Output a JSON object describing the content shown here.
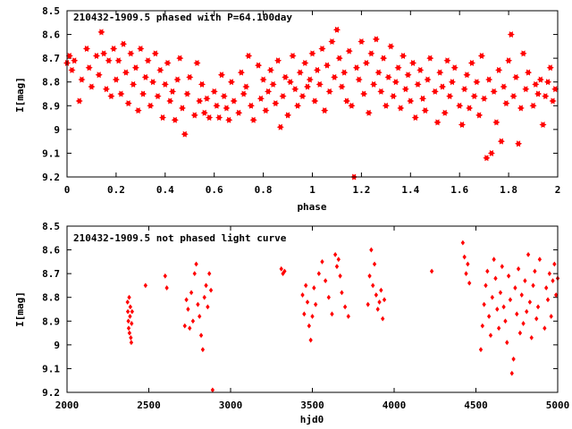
{
  "colors": {
    "points": "#ff0000",
    "axes": "#000000",
    "background": "#ffffff"
  },
  "chart_data": [
    {
      "type": "scatter",
      "title": "210432-1909.5 phased with P=64.100day",
      "xlabel": "phase",
      "ylabel": "I[mag]",
      "xlim": [
        0,
        2
      ],
      "ylim": [
        9.2,
        8.5
      ],
      "y_inverted": true,
      "xticks": [
        "0",
        "0.2",
        "0.4",
        "0.6",
        "0.8",
        "1",
        "1.2",
        "1.4",
        "1.6",
        "1.8",
        "2"
      ],
      "yticks": [
        "8.5",
        "8.6",
        "8.7",
        "8.8",
        "8.9",
        "9",
        "9.1",
        "9.2"
      ],
      "marker": "star",
      "series": [
        {
          "x": [
            0.0,
            0.01,
            0.02,
            0.03,
            0.05,
            0.06,
            0.08,
            0.09,
            0.1,
            0.12,
            0.13,
            0.14,
            0.15,
            0.16,
            0.17,
            0.18,
            0.19,
            0.2,
            0.21,
            0.22,
            0.23,
            0.24,
            0.25,
            0.26,
            0.27,
            0.28,
            0.29,
            0.3,
            0.31,
            0.32,
            0.33,
            0.34,
            0.35,
            0.36,
            0.37,
            0.38,
            0.39,
            0.4,
            0.41,
            0.42,
            0.43,
            0.44,
            0.45,
            0.46,
            0.47,
            0.48,
            0.49,
            0.5,
            0.52,
            0.53,
            0.54,
            0.55,
            0.56,
            0.57,
            0.58,
            0.6,
            0.61,
            0.62,
            0.63,
            0.64,
            0.65,
            0.66,
            0.67,
            0.68,
            0.7,
            0.71,
            0.72,
            0.73,
            0.74,
            0.75,
            0.76,
            0.78,
            0.79,
            0.8,
            0.81,
            0.82,
            0.83,
            0.84,
            0.85,
            0.86,
            0.87,
            0.88,
            0.89,
            0.9,
            0.91,
            0.92,
            0.93,
            0.94,
            0.95,
            0.96,
            0.97,
            0.98,
            0.99,
            1.0,
            1.01,
            1.02,
            1.03,
            1.04,
            1.05,
            1.06,
            1.07,
            1.08,
            1.09,
            1.1,
            1.11,
            1.12,
            1.13,
            1.14,
            1.15,
            1.16,
            1.17,
            1.18,
            1.19,
            1.2,
            1.21,
            1.22,
            1.23,
            1.24,
            1.25,
            1.26,
            1.27,
            1.28,
            1.29,
            1.3,
            1.31,
            1.32,
            1.33,
            1.34,
            1.35,
            1.36,
            1.37,
            1.38,
            1.39,
            1.4,
            1.41,
            1.42,
            1.43,
            1.44,
            1.45,
            1.46,
            1.47,
            1.48,
            1.5,
            1.51,
            1.52,
            1.53,
            1.54,
            1.55,
            1.56,
            1.57,
            1.58,
            1.6,
            1.61,
            1.62,
            1.63,
            1.64,
            1.65,
            1.66,
            1.67,
            1.68,
            1.69,
            1.7,
            1.71,
            1.72,
            1.73,
            1.74,
            1.75,
            1.76,
            1.77,
            1.78,
            1.79,
            1.8,
            1.81,
            1.82,
            1.83,
            1.84,
            1.85,
            1.86,
            1.87,
            1.88,
            1.9,
            1.91,
            1.92,
            1.93,
            1.94,
            1.95,
            1.96,
            1.97,
            1.98,
            1.99
          ],
          "y": [
            8.72,
            8.69,
            8.75,
            8.71,
            8.88,
            8.79,
            8.66,
            8.74,
            8.82,
            8.69,
            8.77,
            8.59,
            8.68,
            8.83,
            8.71,
            8.86,
            8.66,
            8.79,
            8.71,
            8.85,
            8.64,
            8.76,
            8.89,
            8.68,
            8.81,
            8.74,
            8.92,
            8.66,
            8.85,
            8.78,
            8.71,
            8.9,
            8.8,
            8.68,
            8.86,
            8.75,
            8.95,
            8.81,
            8.72,
            8.88,
            8.84,
            8.96,
            8.79,
            8.7,
            8.91,
            9.02,
            8.85,
            8.78,
            8.94,
            8.72,
            8.88,
            8.81,
            8.93,
            8.87,
            8.95,
            8.84,
            8.9,
            8.95,
            8.77,
            8.86,
            8.91,
            8.96,
            8.8,
            8.88,
            8.93,
            8.76,
            8.85,
            8.82,
            8.69,
            8.9,
            8.96,
            8.73,
            8.87,
            8.79,
            8.92,
            8.84,
            8.75,
            8.81,
            8.89,
            8.71,
            8.99,
            8.86,
            8.78,
            8.94,
            8.8,
            8.69,
            8.83,
            8.9,
            8.76,
            8.86,
            8.72,
            8.82,
            8.79,
            8.68,
            8.88,
            8.75,
            8.81,
            8.66,
            8.92,
            8.73,
            8.84,
            8.63,
            8.78,
            8.58,
            8.7,
            8.82,
            8.76,
            8.88,
            8.67,
            8.9,
            9.2,
            8.74,
            8.79,
            8.63,
            8.85,
            8.72,
            8.93,
            8.68,
            8.81,
            8.62,
            8.76,
            8.84,
            8.7,
            8.9,
            8.78,
            8.65,
            8.86,
            8.8,
            8.74,
            8.91,
            8.69,
            8.83,
            8.77,
            8.88,
            8.72,
            8.95,
            8.81,
            8.75,
            8.87,
            8.92,
            8.79,
            8.7,
            8.84,
            8.97,
            8.76,
            8.82,
            8.93,
            8.71,
            8.86,
            8.8,
            8.74,
            8.9,
            8.98,
            8.83,
            8.77,
            8.91,
            8.72,
            8.86,
            8.8,
            8.94,
            8.69,
            8.87,
            9.12,
            8.79,
            9.1,
            8.84,
            8.97,
            8.75,
            9.05,
            8.82,
            8.89,
            8.71,
            8.6,
            8.86,
            8.78,
            9.06,
            8.91,
            8.68,
            8.83,
            8.76,
            8.9,
            8.81,
            8.85,
            8.79,
            8.98,
            8.86,
            8.8,
            8.74,
            8.88,
            8.83
          ]
        }
      ]
    },
    {
      "type": "scatter",
      "title": "210432-1909.5 not phased light curve",
      "xlabel": "hjd0",
      "ylabel": "I[mag]",
      "xlim": [
        2000,
        5000
      ],
      "ylim": [
        9.2,
        8.5
      ],
      "y_inverted": true,
      "xticks": [
        "2000",
        "2500",
        "3000",
        "3500",
        "4000",
        "4500",
        "5000"
      ],
      "yticks": [
        "8.5",
        "8.6",
        "8.7",
        "8.8",
        "8.9",
        "9",
        "9.1",
        "9.2"
      ],
      "marker": "diamond",
      "series": [
        {
          "x": [
            2370,
            2372,
            2375,
            2377,
            2380,
            2382,
            2385,
            2387,
            2390,
            2393,
            2395,
            2398,
            2480,
            2600,
            2610,
            2720,
            2730,
            2740,
            2750,
            2760,
            2770,
            2780,
            2790,
            2800,
            2810,
            2820,
            2830,
            2840,
            2850,
            2860,
            2870,
            2880,
            2890,
            3310,
            3320,
            3330,
            3440,
            3450,
            3460,
            3470,
            3480,
            3490,
            3500,
            3510,
            3520,
            3540,
            3560,
            3580,
            3600,
            3620,
            3640,
            3650,
            3660,
            3670,
            3680,
            3700,
            3720,
            3840,
            3850,
            3860,
            3870,
            3880,
            3890,
            3900,
            3910,
            3920,
            3930,
            3940,
            4230,
            4420,
            4430,
            4440,
            4450,
            4460,
            4530,
            4540,
            4550,
            4560,
            4570,
            4580,
            4590,
            4600,
            4610,
            4620,
            4630,
            4640,
            4650,
            4660,
            4670,
            4680,
            4690,
            4700,
            4710,
            4720,
            4730,
            4740,
            4750,
            4760,
            4770,
            4780,
            4790,
            4800,
            4810,
            4820,
            4830,
            4840,
            4850,
            4860,
            4870,
            4880,
            4890,
            4920,
            4930,
            4940,
            4950,
            4960,
            4970,
            4980,
            4990,
            5000
          ],
          "y": [
            8.82,
            8.86,
            8.9,
            8.93,
            8.8,
            8.95,
            8.88,
            8.84,
            8.97,
            8.99,
            8.91,
            8.86,
            8.75,
            8.71,
            8.76,
            8.92,
            8.81,
            8.85,
            8.93,
            8.78,
            8.9,
            8.7,
            8.66,
            8.83,
            8.88,
            8.96,
            9.02,
            8.8,
            8.75,
            8.84,
            8.7,
            8.77,
            9.19,
            8.68,
            8.7,
            8.69,
            8.79,
            8.87,
            8.75,
            8.82,
            8.92,
            8.98,
            8.88,
            8.76,
            8.83,
            8.7,
            8.65,
            8.73,
            8.8,
            8.87,
            8.62,
            8.67,
            8.64,
            8.71,
            8.78,
            8.84,
            8.88,
            8.83,
            8.71,
            8.6,
            8.75,
            8.66,
            8.79,
            8.85,
            8.82,
            8.77,
            8.89,
            8.81,
            8.69,
            8.57,
            8.63,
            8.7,
            8.66,
            8.74,
            9.02,
            8.92,
            8.83,
            8.75,
            8.69,
            8.88,
            8.96,
            8.8,
            8.64,
            8.72,
            8.85,
            8.93,
            8.78,
            8.67,
            8.84,
            8.9,
            8.99,
            8.71,
            8.81,
            9.12,
            9.06,
            8.76,
            8.87,
            8.68,
            8.95,
            8.79,
            8.91,
            8.73,
            8.86,
            8.62,
            8.82,
            8.97,
            8.75,
            8.69,
            8.89,
            8.84,
            8.64,
            8.93,
            8.76,
            8.81,
            8.7,
            8.88,
            8.73,
            8.66,
            8.79,
            8.72
          ]
        }
      ]
    }
  ]
}
